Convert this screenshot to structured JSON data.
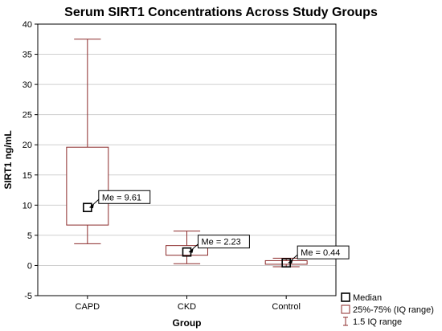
{
  "chart_data": {
    "type": "box",
    "title": "Serum SIRT1 Concentrations Across Study Groups",
    "xlabel": "Group",
    "ylabel": "SIRT1 ng/mL",
    "ylim": [
      -5,
      40
    ],
    "yticks": [
      -5,
      0,
      5,
      10,
      15,
      20,
      25,
      30,
      35,
      40
    ],
    "grid": true,
    "box_color": "#8b2a2a",
    "categories": [
      "CAPD",
      "CKD",
      "Control"
    ],
    "boxes": [
      {
        "category": "CAPD",
        "median": 9.61,
        "q1": 6.7,
        "q3": 19.6,
        "whisker_low": 3.6,
        "whisker_high": 37.5,
        "annotation": "Me = 9.61"
      },
      {
        "category": "CKD",
        "median": 2.23,
        "q1": 1.7,
        "q3": 3.3,
        "whisker_low": 0.3,
        "whisker_high": 5.7,
        "annotation": "Me = 2.23"
      },
      {
        "category": "Control",
        "median": 0.44,
        "q1": 0.2,
        "q3": 0.8,
        "whisker_low": -0.2,
        "whisker_high": 1.2,
        "annotation": "Me = 0.44"
      }
    ],
    "legend": {
      "position": "bottom-right",
      "entries": [
        "Median",
        "25%-75% (IQ range)",
        "1.5 IQ range"
      ]
    }
  }
}
